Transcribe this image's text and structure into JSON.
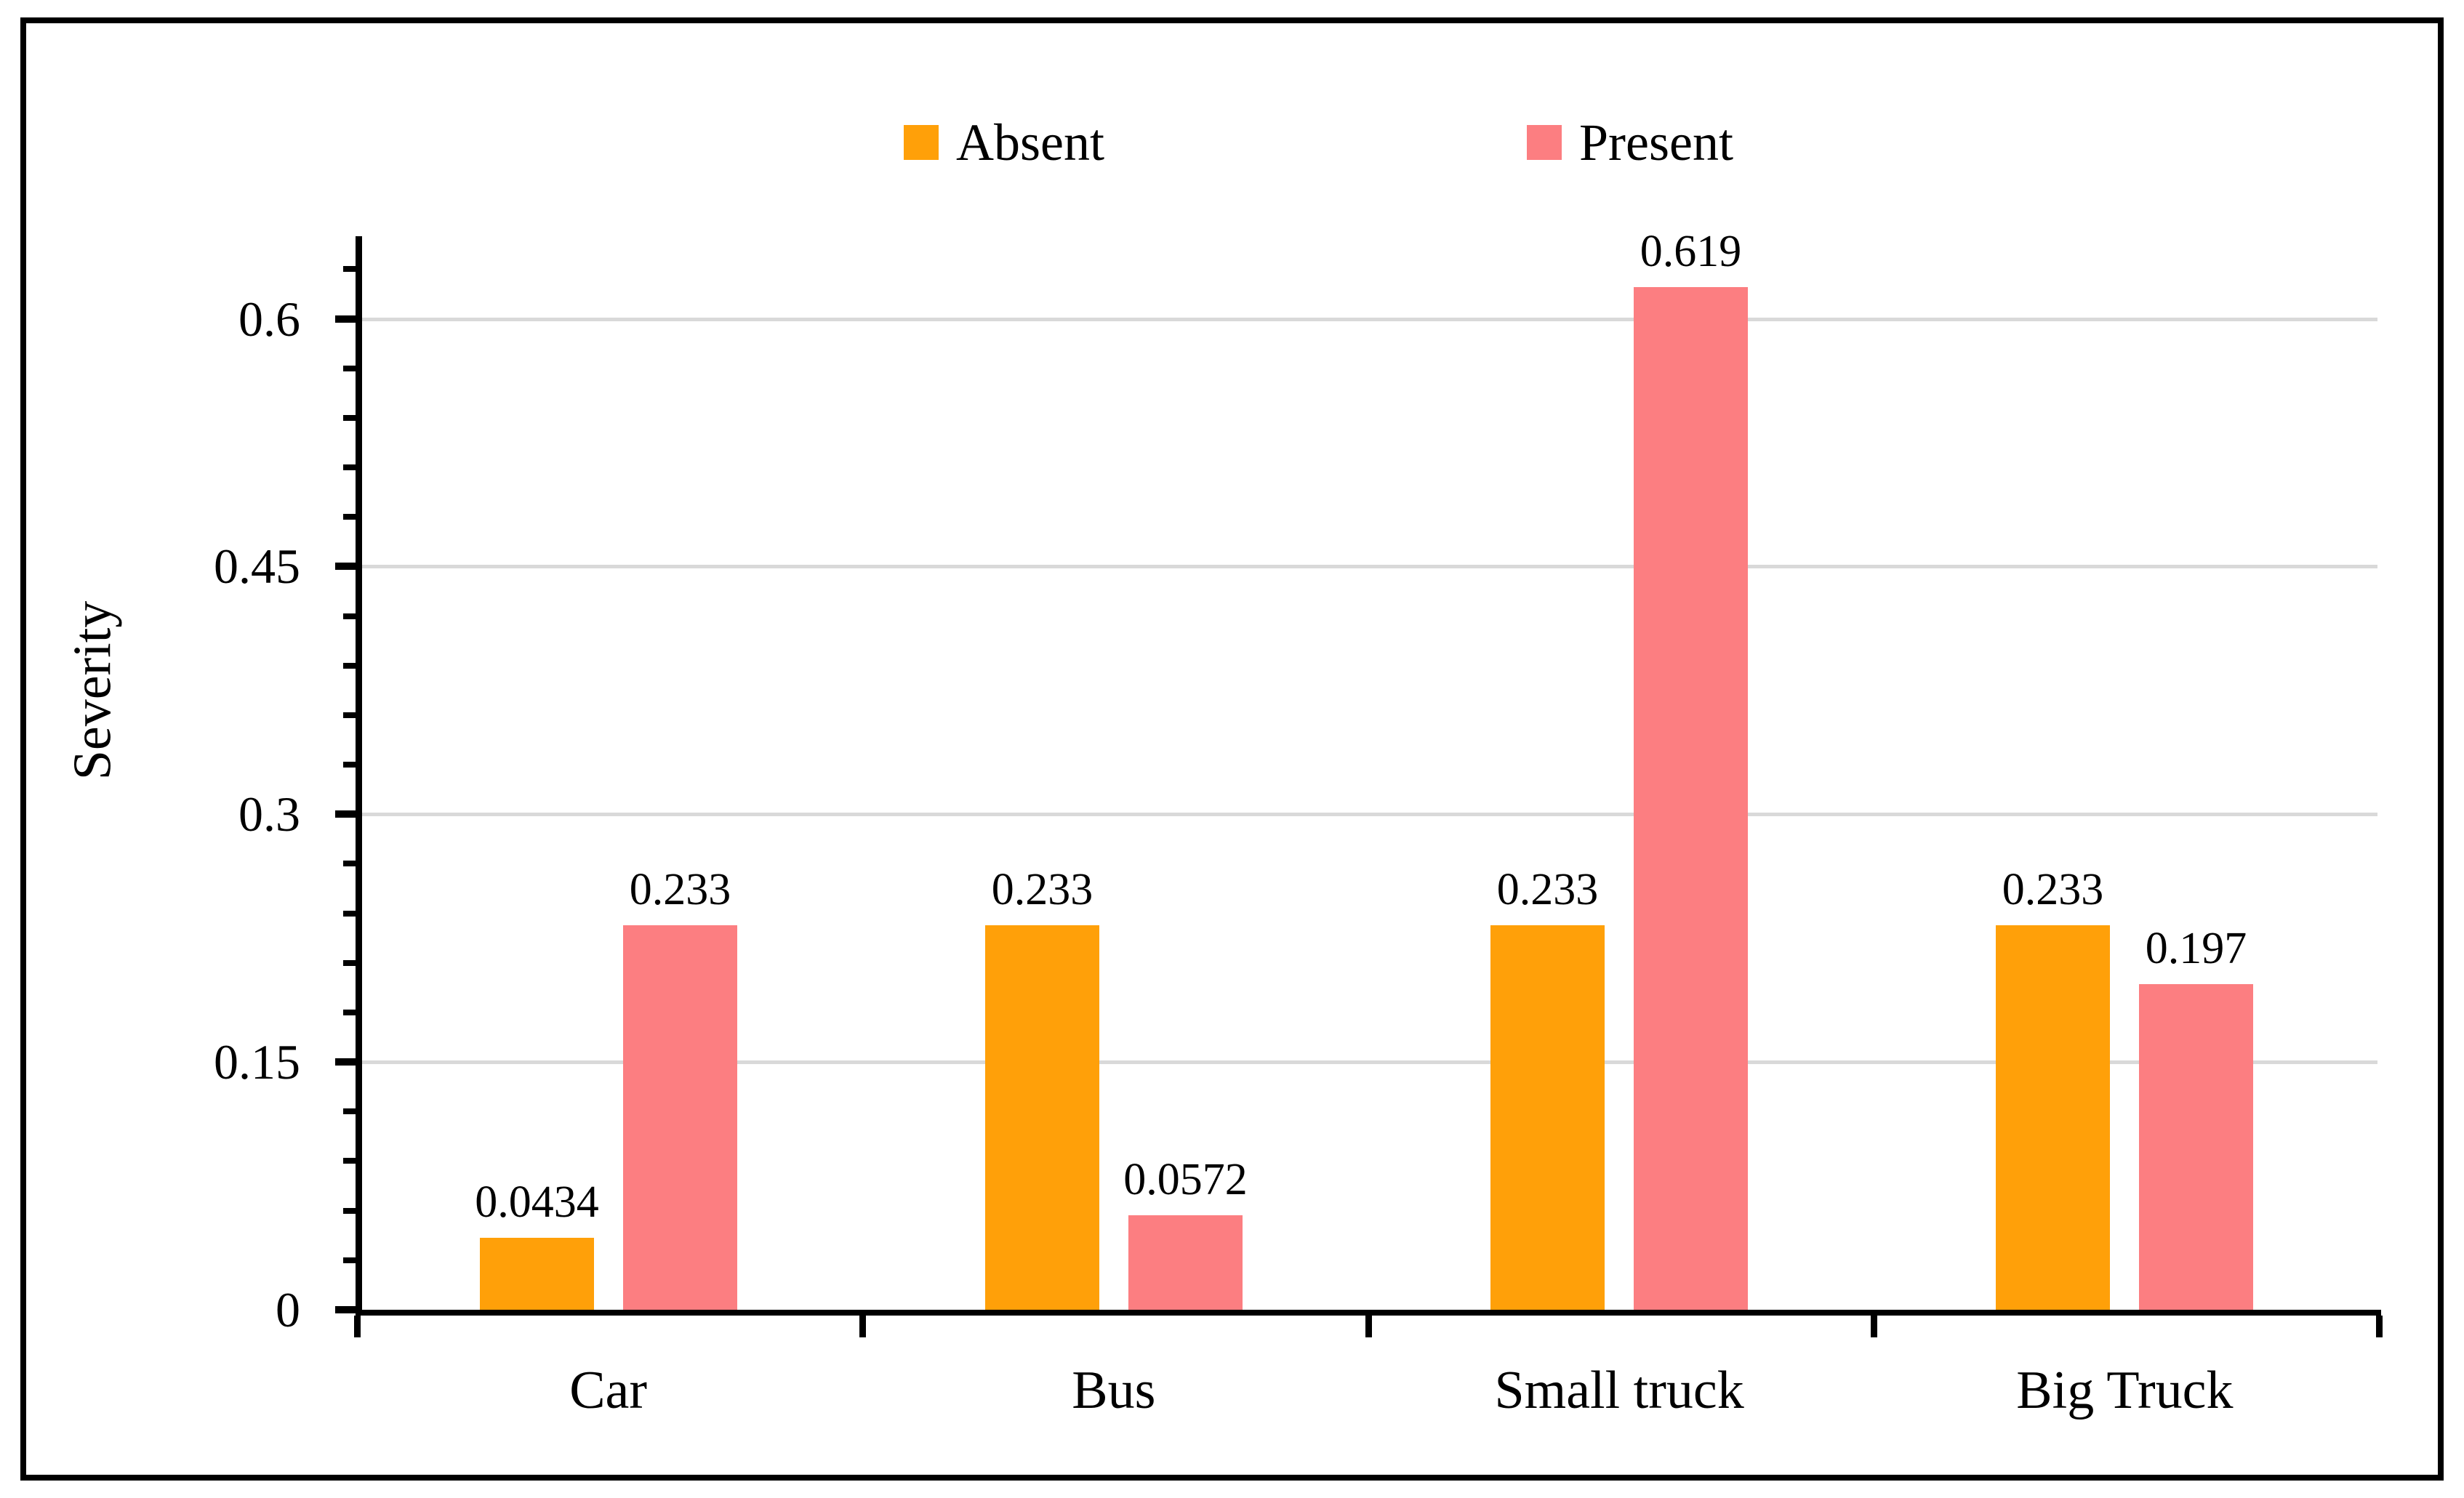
{
  "figure": {
    "background_color": "#ffffff",
    "border_color": "#000000"
  },
  "legend": {
    "position": "top",
    "items": [
      {
        "label": "Absent",
        "color": "#FFA009"
      },
      {
        "label": "Present",
        "color": "#FC7E81"
      }
    ]
  },
  "chart_data": {
    "type": "bar",
    "title": "",
    "categories": [
      "Car",
      "Bus",
      "Small truck",
      "Big Truck"
    ],
    "series": [
      {
        "name": "Absent",
        "color": "#FFA009",
        "values": [
          0.0434,
          0.233,
          0.233,
          0.233
        ],
        "labels": [
          "0.0434",
          "0.233",
          "0.233",
          "0.233"
        ]
      },
      {
        "name": "Present",
        "color": "#FC7E81",
        "values": [
          0.233,
          0.0572,
          0.619,
          0.197
        ],
        "labels": [
          "0.233",
          "0.0572",
          "0.619",
          "0.197"
        ]
      }
    ],
    "xlabel": "",
    "ylabel": "Severity",
    "ylim": [
      0,
      0.65
    ],
    "yticks": [
      0,
      0.15,
      0.3,
      0.45,
      0.6
    ],
    "ytick_labels": [
      "0",
      "0.15",
      "0.3",
      "0.45",
      "0.6"
    ],
    "minor_tick_step": 0.03,
    "grid": "horizontal-major",
    "gridline_color": "#D9D9D9",
    "axis_color": "#000000",
    "legend_position": "top-center"
  }
}
